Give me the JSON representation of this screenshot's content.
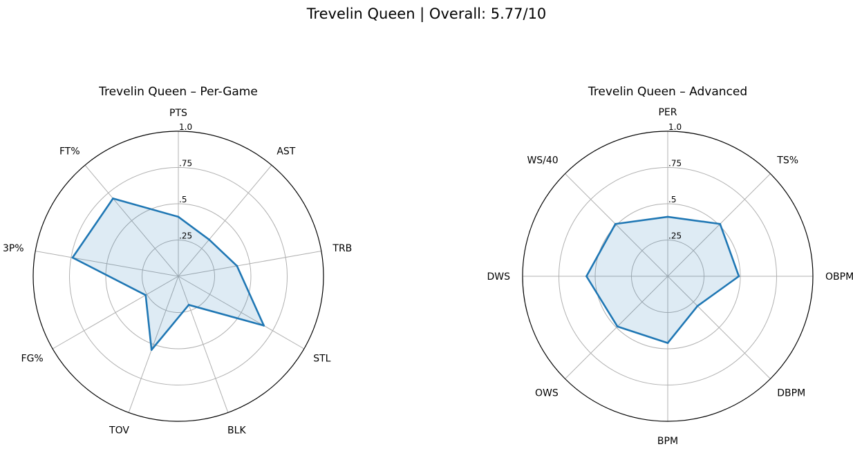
{
  "figure": {
    "suptitle": "Trevelin Queen | Overall: 5.77/10"
  },
  "chart_data": [
    {
      "type": "radar",
      "title": "Trevelin Queen – Per-Game",
      "categories": [
        "PTS",
        "AST",
        "TRB",
        "STL",
        "BLK",
        "TOV",
        "FG%",
        "3P%",
        "FT%"
      ],
      "values": [
        0.41,
        0.33,
        0.41,
        0.68,
        0.21,
        0.54,
        0.26,
        0.74,
        0.7
      ],
      "rlim": [
        0,
        1
      ],
      "rticks": [
        0.25,
        0.5,
        0.75,
        1.0
      ],
      "rtick_labels": [
        ".25",
        ".5",
        ".75",
        "1.0"
      ],
      "grid": true,
      "line_color": "#1f77b4",
      "fill_color": "#1f77b4"
    },
    {
      "type": "radar",
      "title": "Trevelin Queen – Advanced",
      "categories": [
        "PER",
        "TS%",
        "OBPM",
        "DBPM",
        "BPM",
        "OWS",
        "DWS",
        "WS/40"
      ],
      "values": [
        0.41,
        0.51,
        0.49,
        0.29,
        0.46,
        0.49,
        0.56,
        0.51
      ],
      "rlim": [
        0,
        1
      ],
      "rticks": [
        0.25,
        0.5,
        0.75,
        1.0
      ],
      "rtick_labels": [
        ".25",
        ".5",
        ".75",
        "1.0"
      ],
      "grid": true,
      "line_color": "#1f77b4",
      "fill_color": "#1f77b4"
    }
  ]
}
